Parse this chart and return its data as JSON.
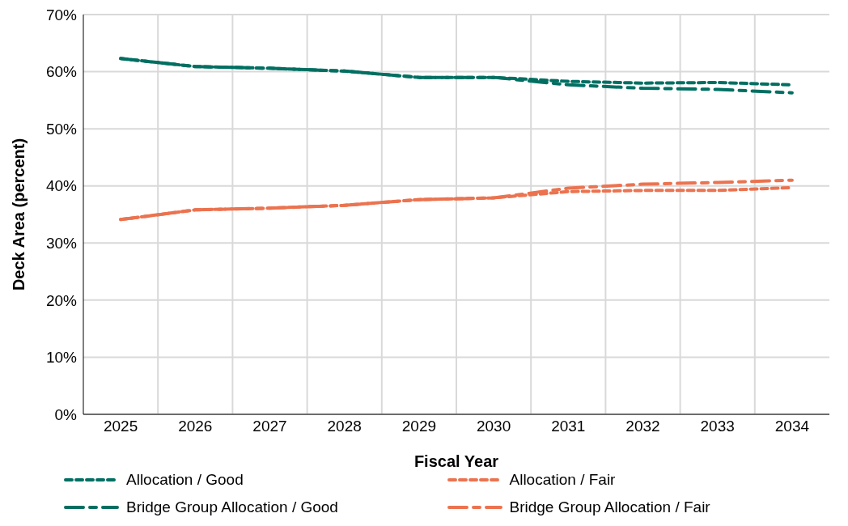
{
  "chart_data": {
    "type": "line",
    "xlabel": "Fiscal Year",
    "ylabel": "Deck Area (percent)",
    "categories": [
      "2025",
      "2026",
      "2027",
      "2028",
      "2029",
      "2030",
      "2031",
      "2032",
      "2033",
      "2034"
    ],
    "series": [
      {
        "name": "Allocation / Good",
        "color": "#006f62",
        "line_style": "dotted",
        "values": [
          62.3,
          60.9,
          60.6,
          60.1,
          59.0,
          59.0,
          58.3,
          58.0,
          58.1,
          57.7
        ]
      },
      {
        "name": "Bridge Group Allocation / Good",
        "color": "#006f62",
        "line_style": "dashed",
        "values": [
          62.3,
          60.9,
          60.6,
          60.1,
          59.0,
          59.0,
          57.7,
          57.1,
          56.9,
          56.3
        ]
      },
      {
        "name": "Allocation / Fair",
        "color": "#eb7350",
        "line_style": "dotted",
        "values": [
          34.1,
          35.8,
          36.1,
          36.6,
          37.6,
          37.9,
          39.0,
          39.2,
          39.2,
          39.7
        ]
      },
      {
        "name": "Bridge Group Allocation / Fair",
        "color": "#eb7350",
        "line_style": "dashed",
        "values": [
          34.1,
          35.8,
          36.1,
          36.6,
          37.6,
          37.9,
          39.6,
          40.3,
          40.6,
          41.0
        ]
      }
    ],
    "ylim": [
      0,
      70
    ],
    "yticks": [
      {
        "value": 0,
        "label": "0%"
      },
      {
        "value": 10,
        "label": "10%"
      },
      {
        "value": 20,
        "label": "20%"
      },
      {
        "value": 30,
        "label": "30%"
      },
      {
        "value": 40,
        "label": "40%"
      },
      {
        "value": 50,
        "label": "50%"
      },
      {
        "value": 60,
        "label": "60%"
      },
      {
        "value": 70,
        "label": "70%"
      }
    ],
    "grid": true,
    "legend": "bottom",
    "marker": "none"
  }
}
